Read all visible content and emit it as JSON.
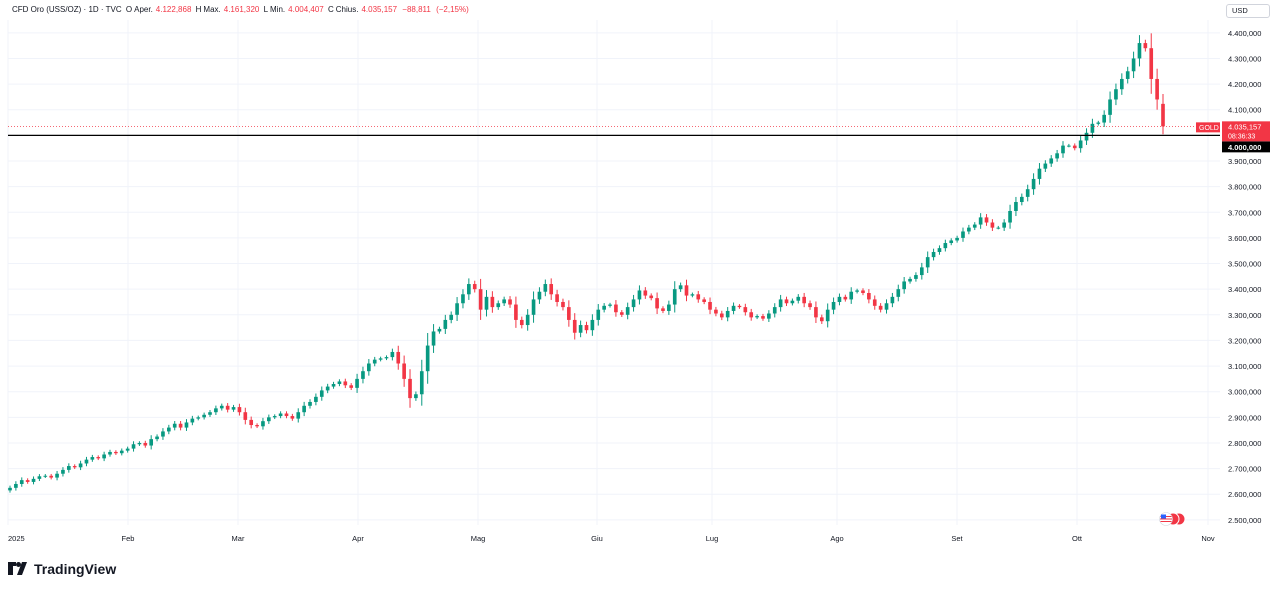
{
  "header": {
    "symbol": "CFD Oro (USS/OZ) · 1D · TVC",
    "open_label": "O",
    "open_text": "Aper.",
    "open_value": "4.122,868",
    "high_label": "H",
    "high_text": "Max.",
    "high_value": "4.161,320",
    "low_label": "L",
    "low_text": "Min.",
    "low_value": "4.004,407",
    "close_label": "C",
    "close_text": "Chius.",
    "close_value": "4.035,157",
    "change": "−88,811",
    "change_pct": "(−2,15%)"
  },
  "currency_label": "USD",
  "brand": "TradingView",
  "colors": {
    "up": "#089981",
    "down": "#f23645",
    "grid": "#f0f3fa",
    "axis_text": "#131722",
    "hline": "#000000"
  },
  "chart_data": {
    "type": "candlestick",
    "title": "",
    "xlabel": "",
    "ylabel": "",
    "ylim": [
      2480,
      4450
    ],
    "x_ticks": [
      "2025",
      "Feb",
      "Mar",
      "Apr",
      "Mag",
      "Giu",
      "Lug",
      "Ago",
      "Set",
      "Ott",
      "Nov"
    ],
    "y_ticks": [
      "4.400,000",
      "4.300,000",
      "4.200,000",
      "4.100,000",
      "3.900,000",
      "3.800,000",
      "3.700,000",
      "3.600,000",
      "3.500,000",
      "3.400,000",
      "3.300,000",
      "3.200,000",
      "3.100,000",
      "3.000,000",
      "2.900,000",
      "2.800,000",
      "2.700,000",
      "2.600,000",
      "2.500,000"
    ],
    "horizontal_line": {
      "value": 4000,
      "label": "4.000,000"
    },
    "last_price": {
      "symbol": "GOLD",
      "value": "4.035,157",
      "countdown": "08:36:33"
    },
    "closes": [
      2625,
      2640,
      2655,
      2648,
      2660,
      2670,
      2672,
      2665,
      2680,
      2695,
      2710,
      2705,
      2720,
      2735,
      2745,
      2740,
      2755,
      2765,
      2760,
      2770,
      2778,
      2795,
      2800,
      2790,
      2815,
      2825,
      2845,
      2860,
      2875,
      2860,
      2880,
      2895,
      2900,
      2910,
      2920,
      2935,
      2945,
      2930,
      2940,
      2920,
      2890,
      2870,
      2865,
      2885,
      2900,
      2905,
      2915,
      2905,
      2895,
      2920,
      2945,
      2960,
      2980,
      3005,
      3020,
      3030,
      3040,
      3025,
      3015,
      3050,
      3080,
      3110,
      3125,
      3130,
      3135,
      3155,
      3110,
      3050,
      2975,
      2990,
      3080,
      3180,
      3235,
      3245,
      3280,
      3300,
      3345,
      3380,
      3420,
      3400,
      3320,
      3370,
      3330,
      3345,
      3360,
      3340,
      3280,
      3260,
      3300,
      3360,
      3390,
      3420,
      3380,
      3350,
      3330,
      3280,
      3230,
      3260,
      3240,
      3280,
      3320,
      3335,
      3340,
      3310,
      3300,
      3330,
      3360,
      3395,
      3375,
      3365,
      3325,
      3315,
      3340,
      3400,
      3415,
      3375,
      3380,
      3360,
      3350,
      3320,
      3305,
      3290,
      3315,
      3335,
      3330,
      3310,
      3290,
      3295,
      3285,
      3305,
      3330,
      3360,
      3345,
      3355,
      3370,
      3345,
      3330,
      3290,
      3275,
      3320,
      3350,
      3370,
      3360,
      3390,
      3395,
      3385,
      3360,
      3335,
      3320,
      3345,
      3370,
      3400,
      3430,
      3440,
      3455,
      3485,
      3525,
      3545,
      3560,
      3580,
      3590,
      3600,
      3625,
      3640,
      3652,
      3680,
      3660,
      3640,
      3640,
      3660,
      3705,
      3740,
      3760,
      3790,
      3830,
      3870,
      3890,
      3910,
      3930,
      3960,
      3960,
      3950,
      3980,
      4010,
      4045,
      4050,
      4080,
      4140,
      4180,
      4220,
      4250,
      4300,
      4360,
      4340,
      4220,
      4140,
      4035
    ],
    "ohlc_last": {
      "open": 4122.868,
      "high": 4161.32,
      "low": 4004.407,
      "close": 4035.157
    },
    "ohlc_last_change": -88.811
  }
}
